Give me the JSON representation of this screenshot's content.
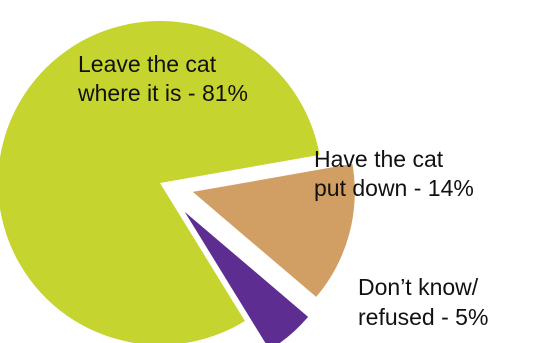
{
  "chart_data": {
    "type": "pie",
    "slices": [
      {
        "label_lines": [
          "Leave the cat",
          "where it is - 81%"
        ],
        "value": 81,
        "color": "#c5d42e"
      },
      {
        "label_lines": [
          "Have the cat",
          "put down - 14%"
        ],
        "value": 14,
        "color": "#d19f63"
      },
      {
        "label_lines": [
          "Don’t know/",
          "refused - 5%"
        ],
        "value": 5,
        "color": "#5e2d91"
      }
    ]
  }
}
